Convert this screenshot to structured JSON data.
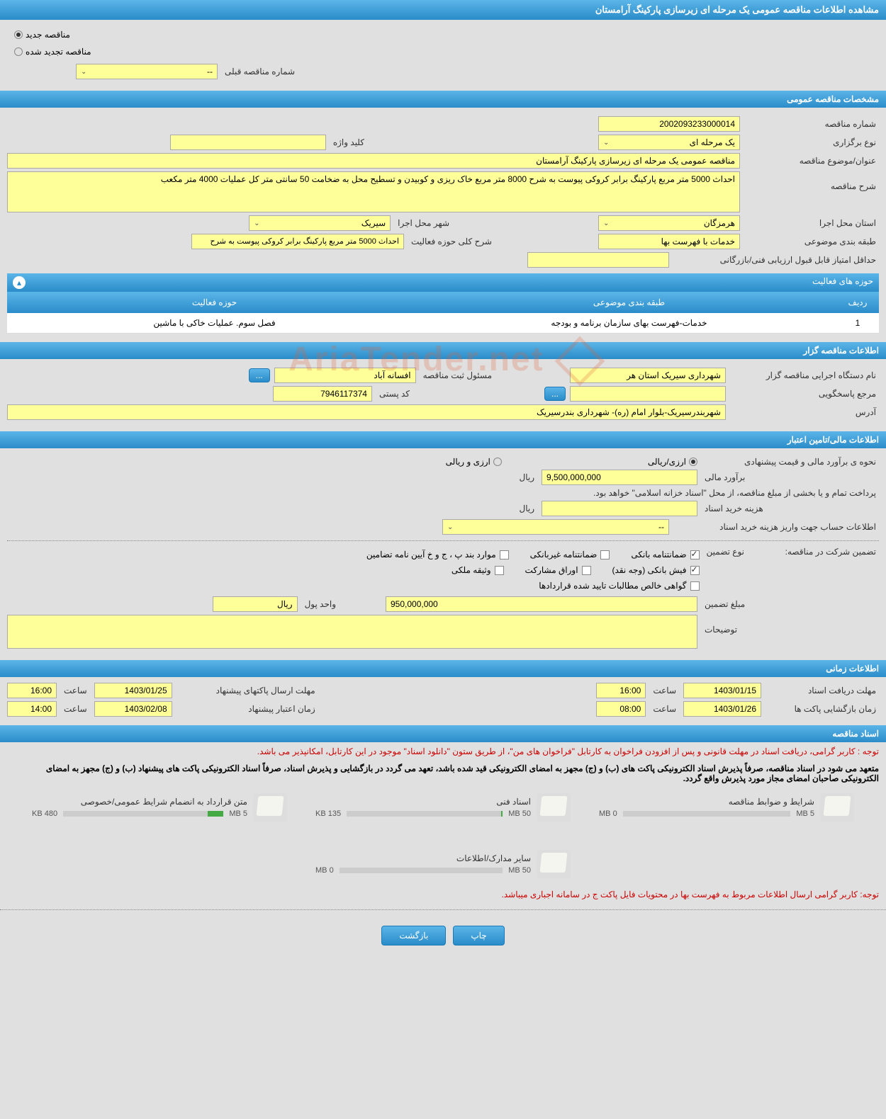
{
  "page_title": "مشاهده اطلاعات مناقصه عمومی یک مرحله ای زیرسازی پارکینگ آرامستان",
  "tender_type": {
    "new_label": "مناقصه جدید",
    "renewed_label": "مناقصه تجدید شده",
    "selected": "new"
  },
  "prev_number": {
    "label": "شماره مناقصه قبلی",
    "value": "--"
  },
  "sections": {
    "general": "مشخصات مناقصه عمومی",
    "organizer": "اطلاعات مناقصه گزار",
    "financial": "اطلاعات مالی/تامین اعتبار",
    "timing": "اطلاعات زمانی",
    "documents": "اسناد مناقصه"
  },
  "general": {
    "tender_number": {
      "label": "شماره مناقصه",
      "value": "2002093233000014"
    },
    "hold_type": {
      "label": "نوع برگزاری",
      "value": "یک مرحله ای"
    },
    "keyword": {
      "label": "کلید واژه",
      "value": ""
    },
    "subject": {
      "label": "عنوان/موضوع مناقصه",
      "value": "مناقصه عمومی یک مرحله ای زیرسازی پارکینگ آرامستان"
    },
    "description": {
      "label": "شرح مناقصه",
      "value": "احداث 5000 متر مربع پارکینگ برابر کروکی پیوست به شرح 8000 متر مربع خاک ریزی و کوبیدن و تسطیح محل به ضخامت 50 سانتی متر کل عملیات 4000 متر مکعب"
    },
    "province": {
      "label": "استان محل اجرا",
      "value": "هرمزگان"
    },
    "city": {
      "label": "شهر محل اجرا",
      "value": "سیریک"
    },
    "category": {
      "label": "طبقه بندی موضوعی",
      "value": "خدمات با فهرست بها"
    },
    "activity_desc": {
      "label": "شرح کلی حوزه فعالیت",
      "value": "احداث 5000 متر مربع پارکینگ برابر کروکی پیوست به شرح"
    },
    "min_score": {
      "label": "حداقل امتیاز قابل قبول ارزیابی فنی/بازرگانی",
      "value": ""
    }
  },
  "activity_table": {
    "title": "حوزه های فعالیت",
    "cols": {
      "row": "ردیف",
      "category": "طبقه بندی موضوعی",
      "activity": "حوزه فعالیت"
    },
    "rows": [
      {
        "row": "1",
        "category": "خدمات-فهرست بهای سازمان برنامه و بودجه",
        "activity": "فصل سوم. عملیات خاکی با ماشین"
      }
    ]
  },
  "organizer": {
    "name": {
      "label": "نام دستگاه اجرایی مناقصه گزار",
      "value": "شهرداری سیریک استان هر"
    },
    "reg_officer": {
      "label": "مسئول ثبت مناقصه",
      "value": "افسانه آباد"
    },
    "responder": {
      "label": "مرجع پاسخگویی",
      "value": ""
    },
    "postal": {
      "label": "کد پستی",
      "value": "7946117374"
    },
    "address": {
      "label": "آدرس",
      "value": "شهربندرسیریک-بلوار امام (ره)- شهرداری بندرسیریک"
    }
  },
  "financial": {
    "estimate_type_label": "نحوه ی برآورد مالی و قیمت پیشنهادی",
    "fx_rial_label": "ارزی/ریالی",
    "fx_and_rial_label": "ارزی و ریالی",
    "estimate": {
      "label": "برآورد مالی",
      "value": "9,500,000,000",
      "unit": "ریال"
    },
    "treasury_note": "پرداخت تمام و یا بخشی از مبلغ مناقصه، از محل \"اسناد خزانه اسلامی\" خواهد بود.",
    "doc_cost": {
      "label": "هزینه خرید اسناد",
      "value": "",
      "unit": "ریال"
    },
    "account_info": {
      "label": "اطلاعات حساب جهت واریز هزینه خرید اسناد",
      "value": "--"
    },
    "guarantee_label": "تضمین شرکت در مناقصه:",
    "guarantee_type_label": "نوع تضمین",
    "checkboxes": {
      "bank_guarantee": {
        "label": "ضمانتنامه بانکی",
        "checked": true
      },
      "nonbank_guarantee": {
        "label": "ضمانتنامه غیربانکی",
        "checked": false
      },
      "clauses": {
        "label": "موارد بند پ ، ج و خ آیین نامه تضامین",
        "checked": false
      },
      "bank_slip": {
        "label": "فیش بانکی (وجه نقد)",
        "checked": true
      },
      "participation": {
        "label": "اوراق مشارکت",
        "checked": false
      },
      "property": {
        "label": "وثیقه ملکی",
        "checked": false
      },
      "receivables": {
        "label": "گواهی خالص مطالبات تایید شده قراردادها",
        "checked": false
      }
    },
    "guarantee_amount": {
      "label": "مبلغ تضمین",
      "value": "950,000,000"
    },
    "currency_unit": {
      "label": "واحد پول",
      "value": "ریال"
    },
    "notes": {
      "label": "توضیحات",
      "value": ""
    }
  },
  "timing": {
    "receive_deadline": {
      "label": "مهلت دریافت اسناد",
      "date": "1403/01/15",
      "time": "16:00"
    },
    "submit_deadline": {
      "label": "مهلت ارسال پاکتهای پیشنهاد",
      "date": "1403/01/25",
      "time": "16:00"
    },
    "open_time": {
      "label": "زمان بازگشایی پاکت ها",
      "date": "1403/01/26",
      "time": "08:00"
    },
    "validity": {
      "label": "زمان اعتبار پیشنهاد",
      "date": "1403/02/08",
      "time": "14:00"
    },
    "time_label": "ساعت"
  },
  "documents": {
    "note1": "توجه : کاربر گرامی، دریافت اسناد در مهلت قانونی و پس از افزودن فراخوان به کارتابل \"فراخوان های من\"، از طریق ستون \"دانلود اسناد\" موجود در این کارتابل، امکانپذیر می باشد.",
    "note2": "متعهد می شود در اسناد مناقصه، صرفاً پذیرش اسناد الکترونیکی پاکت های (ب) و (ج) مجهز به امضای الکترونیکی قید شده باشد، تعهد می گردد در بازگشایی و پذیرش اسناد، صرفاً اسناد الکترونیکی پاکت های پیشنهاد (ب) و (ج) مجهز به امضای الکترونیکی صاحبان امضای مجاز مورد پذیرش واقع گردد.",
    "note3": "توجه: کاربر گرامی ارسال اطلاعات مربوط به فهرست بها در محتویات فایل پاکت ج در سامانه اجباری میباشد.",
    "files": [
      {
        "name": "شرایط و ضوابط مناقصه",
        "used": "0 MB",
        "total": "5 MB",
        "fill_pct": 0
      },
      {
        "name": "اسناد فنی",
        "used": "135 KB",
        "total": "50 MB",
        "fill_pct": 1
      },
      {
        "name": "متن قرارداد به انضمام شرایط عمومی/خصوصی",
        "used": "480 KB",
        "total": "5 MB",
        "fill_pct": 10
      },
      {
        "name": "سایر مدارک/اطلاعات",
        "used": "0 MB",
        "total": "50 MB",
        "fill_pct": 0
      }
    ]
  },
  "buttons": {
    "print": "چاپ",
    "back": "بازگشت",
    "dots": "..."
  },
  "colors": {
    "header_gradient_top": "#5bb5e8",
    "header_gradient_bottom": "#2a8cc9",
    "field_bg": "#ffff99",
    "page_bg": "#e0e0e0",
    "red_text": "#cc0000"
  }
}
